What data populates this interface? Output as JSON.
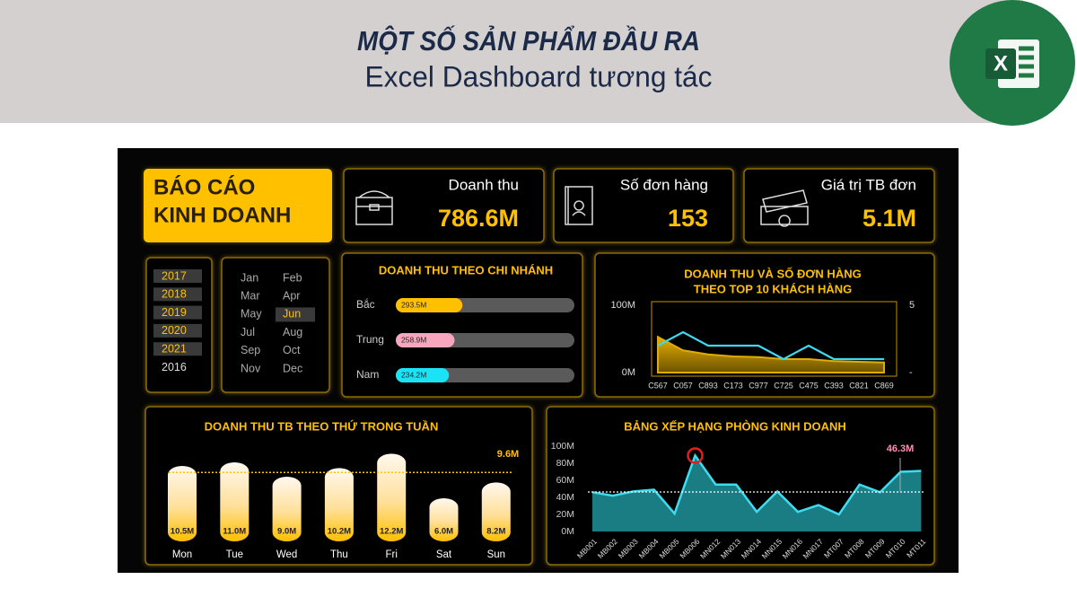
{
  "header": {
    "title": "MỘT SỐ SẢN PHẨM ĐẦU RA",
    "subtitle": "Excel Dashboard tương tác",
    "logo_letter": "X"
  },
  "dashboard": {
    "title_lines": [
      "BÁO CÁO",
      "KINH DOANH"
    ],
    "kpis": [
      {
        "label": "Doanh thu",
        "value": "786.6M"
      },
      {
        "label": "Số đơn hàng",
        "value": "153"
      },
      {
        "label": "Giá trị TB đơn",
        "value": "5.1M"
      }
    ],
    "years": [
      {
        "label": "2017",
        "selected": true
      },
      {
        "label": "2018",
        "selected": true
      },
      {
        "label": "2019",
        "selected": true
      },
      {
        "label": "2020",
        "selected": true
      },
      {
        "label": "2021",
        "selected": true
      },
      {
        "label": "2016",
        "selected": false
      }
    ],
    "months": [
      {
        "label": "Jan",
        "selected": false
      },
      {
        "label": "Feb",
        "selected": false
      },
      {
        "label": "Mar",
        "selected": false
      },
      {
        "label": "Apr",
        "selected": false
      },
      {
        "label": "May",
        "selected": false
      },
      {
        "label": "Jun",
        "selected": true
      },
      {
        "label": "Jul",
        "selected": false
      },
      {
        "label": "Aug",
        "selected": false
      },
      {
        "label": "Sep",
        "selected": false
      },
      {
        "label": "Oct",
        "selected": false
      },
      {
        "label": "Nov",
        "selected": false
      },
      {
        "label": "Dec",
        "selected": false
      }
    ],
    "branch_chart": {
      "type": "bar",
      "title": "DOANH THU THEO CHI NHÁNH",
      "categories": [
        "Bắc",
        "Trung",
        "Nam"
      ],
      "values": [
        293.5,
        258.9,
        234.2
      ],
      "value_labels": [
        "293.5M",
        "258.9M",
        "234.2M"
      ],
      "colors": [
        "#ffc000",
        "#f7a6bd",
        "#19e3f5"
      ],
      "xlim": [
        0,
        786.6
      ]
    },
    "customer_chart": {
      "type": "area",
      "title_lines": [
        "DOANH THU VÀ SỐ ĐƠN HÀNG",
        "THEO TOP 10 KHÁCH HÀNG"
      ],
      "categories": [
        "C567",
        "C057",
        "C893",
        "C173",
        "C977",
        "C725",
        "C475",
        "C393",
        "C821",
        "C869"
      ],
      "series": [
        {
          "color": "#e0ac00",
          "values": [
            53,
            33,
            27,
            24,
            23,
            20,
            20,
            17,
            16,
            15
          ]
        },
        {
          "color": "#3dd9f0",
          "axis": "y2",
          "values": [
            2,
            3,
            2,
            2,
            2,
            1,
            2,
            1,
            1,
            1
          ]
        }
      ],
      "ylim": [
        0,
        100
      ],
      "yticks": [
        {
          "value": 0,
          "label": "0M"
        },
        {
          "value": 100,
          "label": "100M"
        }
      ],
      "y2lim": [
        0,
        5
      ],
      "y2ticks": [
        {
          "value": 0,
          "label": "-"
        },
        5
      ]
    },
    "weekday_chart": {
      "type": "bar",
      "title": "DOANH THU TB THEO THỨ TRONG TUẦN",
      "categories": [
        "Mon",
        "Tue",
        "Wed",
        "Thu",
        "Fri",
        "Sat",
        "Sun"
      ],
      "values": [
        10.5,
        11.0,
        9.0,
        10.2,
        12.2,
        6.0,
        8.2
      ],
      "value_labels": [
        "10.5M",
        "11.0M",
        "9.0M",
        "10.2M",
        "12.2M",
        "6.0M",
        "8.2M"
      ],
      "average": 9.6,
      "average_label": "9.6M",
      "ylim": [
        0,
        12.5
      ]
    },
    "ranking_chart": {
      "type": "area",
      "title": "BẢNG XẾP HẠNG PHÒNG KINH DOANH",
      "categories": [
        "MB001",
        "MB002",
        "MB003",
        "MB004",
        "MB005",
        "MB006",
        "MN012",
        "MN013",
        "MN014",
        "MN015",
        "MN016",
        "MN017",
        "MT007",
        "MT008",
        "MT009",
        "MT010",
        "MT011"
      ],
      "values": [
        46,
        42,
        47,
        49,
        21,
        89,
        55,
        55,
        23,
        47,
        23,
        31,
        20,
        55,
        46,
        70,
        71
      ],
      "color": "#1b7d84",
      "line_color": "#3ddcf0",
      "average": 46.3,
      "average_label": "46.3M",
      "ylim": [
        0,
        100
      ],
      "yticks": [
        {
          "value": 0,
          "label": "0M"
        },
        {
          "value": 20,
          "label": "20M"
        },
        {
          "value": 40,
          "label": "40M"
        },
        {
          "value": 60,
          "label": "60M"
        },
        {
          "value": 80,
          "label": "80M"
        },
        {
          "value": 100,
          "label": "100M"
        }
      ]
    }
  }
}
